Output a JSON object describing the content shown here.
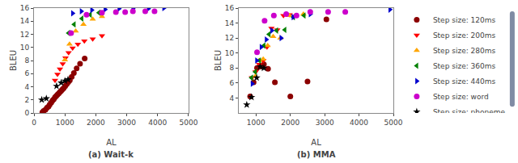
{
  "chart_data": [
    {
      "type": "scatter",
      "title": "(a) Wait-k",
      "xlabel": "AL",
      "ylabel": "BLEU",
      "xlim": [
        0,
        5000
      ],
      "ylim": [
        0,
        16
      ],
      "xticks": [
        0,
        1000,
        2000,
        3000,
        4000,
        5000
      ],
      "yticks": [
        0,
        2,
        4,
        6,
        8,
        10,
        12,
        14,
        16
      ],
      "grid": false,
      "series": [
        {
          "color": "#8B0000",
          "marker": "circle",
          "x": [
            270,
            310,
            370,
            420,
            470,
            510,
            560,
            600,
            640,
            680,
            720,
            760,
            800,
            840,
            880,
            920,
            960,
            1010,
            1060,
            1110,
            1160,
            1220,
            1290,
            1380,
            1490,
            1640
          ],
          "values": [
            0.1,
            0.3,
            0.5,
            0.8,
            1.0,
            1.3,
            1.6,
            1.9,
            2.1,
            2.4,
            2.6,
            2.8,
            3.0,
            3.2,
            3.4,
            3.6,
            3.8,
            4.1,
            4.4,
            4.7,
            5.0,
            5.5,
            6.1,
            6.8,
            7.5,
            8.3
          ]
        },
        {
          "color": "#FF0000",
          "marker": "triangle-down",
          "x": [
            680,
            760,
            840,
            930,
            1020,
            1120,
            1250,
            1420,
            1630,
            1900,
            2200
          ],
          "values": [
            5.0,
            5.9,
            6.7,
            7.5,
            8.4,
            9.2,
            9.9,
            10.5,
            11.0,
            11.3,
            11.8
          ]
        },
        {
          "color": "#FFA500",
          "marker": "triangle-up",
          "x": [
            1000,
            1150,
            1350,
            1600,
            1900,
            2200
          ],
          "values": [
            8.1,
            10.5,
            12.5,
            13.5,
            14.3,
            14.7
          ]
        },
        {
          "color": "#008000",
          "marker": "triangle-left",
          "x": [
            1120,
            1300,
            1550,
            1820,
            2100
          ],
          "values": [
            12.2,
            13.5,
            14.4,
            15.0,
            15.3
          ]
        },
        {
          "color": "#0000CD",
          "marker": "triangle-right",
          "x": [
            1250,
            1530,
            1870,
            2300,
            2750,
            3200,
            3700,
            4200
          ],
          "values": [
            15.2,
            15.5,
            15.7,
            15.8,
            15.9,
            15.9,
            15.9,
            16.0
          ]
        },
        {
          "color": "#CC00CC",
          "marker": "circle",
          "x": [
            1200,
            1700,
            2200,
            2650,
            2950,
            3200,
            3600,
            3900
          ],
          "values": [
            12.2,
            15.0,
            15.3,
            15.4,
            15.4,
            15.5,
            15.5,
            15.5
          ]
        },
        {
          "color": "#000000",
          "marker": "star",
          "x": [
            250,
            400,
            730,
            880,
            1000,
            1100
          ],
          "values": [
            2.0,
            2.2,
            4.1,
            4.6,
            4.9,
            5.1
          ]
        }
      ]
    },
    {
      "type": "scatter",
      "title": "(b) MMA",
      "xlabel": "AL",
      "ylabel": "BLEU",
      "xlim": [
        500,
        5000
      ],
      "ylim": [
        2,
        16
      ],
      "xticks": [
        1000,
        2000,
        3000,
        4000,
        5000
      ],
      "yticks": [
        4,
        6,
        8,
        10,
        12,
        14,
        16
      ],
      "grid": false,
      "legend": "right",
      "series": [
        {
          "name": "Step size: 120ms",
          "color": "#8B0000",
          "marker": "circle",
          "x": [
            830,
            930,
            1030,
            1130,
            1230,
            1350,
            1550,
            2000,
            2500,
            3050
          ],
          "values": [
            4.2,
            6.1,
            8.0,
            8.2,
            8.5,
            7.9,
            6.1,
            4.2,
            6.2,
            14.5
          ]
        },
        {
          "name": "Step size: 200ms",
          "color": "#FF0000",
          "marker": "triangle-down",
          "x": [
            880,
            990,
            1090,
            1210,
            1320,
            1450,
            1620,
            1800,
            1980
          ],
          "values": [
            6.7,
            7.5,
            8.5,
            9.0,
            10.8,
            13.3,
            13.1,
            15.0,
            15.1
          ]
        },
        {
          "name": "Step size: 280ms",
          "color": "#FFA500",
          "marker": "triangle-up",
          "x": [
            980,
            1090,
            1210,
            1340,
            1500,
            1710,
            1970,
            2380
          ],
          "values": [
            6.9,
            9.0,
            9.2,
            11.0,
            12.2,
            12.0,
            15.0,
            15.2
          ]
        },
        {
          "name": "Step size: 360ms",
          "color": "#008000",
          "marker": "triangle-left",
          "x": [
            870,
            980,
            1100,
            1230,
            1380,
            1600,
            1840,
            2090,
            2400
          ],
          "values": [
            6.7,
            7.5,
            9.0,
            11.0,
            12.5,
            13.0,
            13.1,
            14.8,
            15.0
          ]
        },
        {
          "name": "Step size: 440ms",
          "color": "#0000CD",
          "marker": "triangle-right",
          "x": [
            890,
            1020,
            1150,
            1300,
            1460,
            1730,
            2080,
            2580,
            4900
          ],
          "values": [
            5.9,
            9.0,
            10.8,
            11.8,
            13.0,
            12.0,
            14.8,
            15.2,
            15.8
          ]
        },
        {
          "name": "Step size: word",
          "color": "#CC00CC",
          "marker": "circle",
          "x": [
            1030,
            1250,
            1520,
            1880,
            2180,
            2580,
            3100,
            3600
          ],
          "values": [
            10.1,
            14.3,
            15.0,
            15.2,
            15.0,
            15.5,
            15.5,
            15.5
          ]
        },
        {
          "name": "Step size: phoneme",
          "color": "#000000",
          "marker": "star",
          "x": [
            730,
            870,
            1020,
            1120,
            1230
          ],
          "values": [
            3.1,
            4.1,
            6.7,
            8.2,
            8.0
          ]
        }
      ]
    }
  ]
}
